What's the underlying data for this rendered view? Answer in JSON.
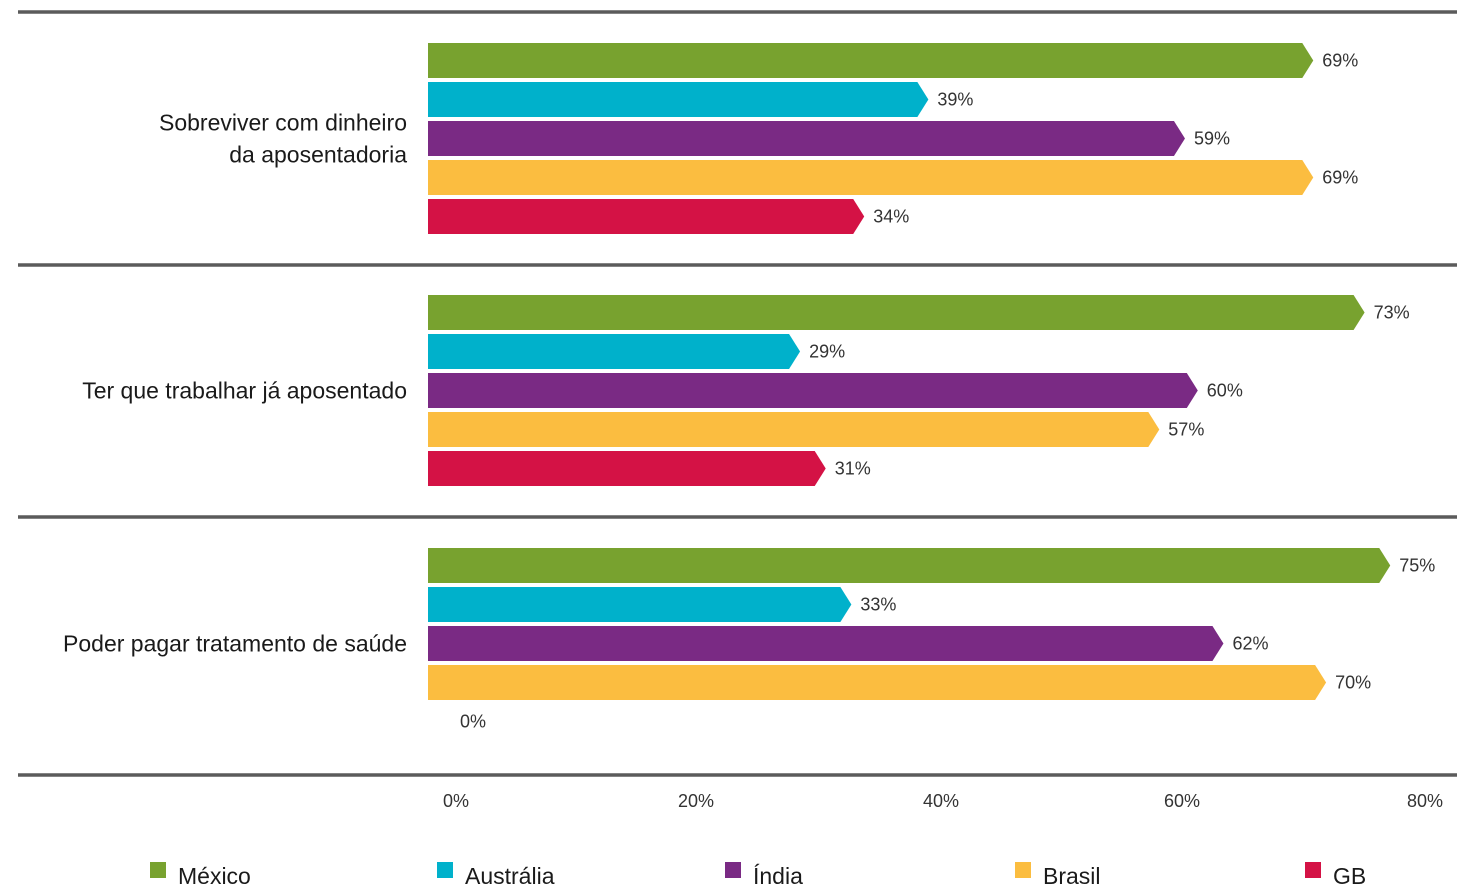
{
  "chart_data": {
    "type": "bar",
    "orientation": "horizontal",
    "categories": [
      [
        "Sobreviver com dinheiro",
        "da aposentadoria"
      ],
      [
        "Ter que trabalhar já aposentado"
      ],
      [
        "Poder pagar tratamento de saúde"
      ]
    ],
    "series": [
      {
        "name": "México",
        "color": "#78a22f",
        "values": [
          69,
          73,
          75
        ]
      },
      {
        "name": "Austrália",
        "color": "#00b1cb",
        "values": [
          39,
          29,
          33
        ]
      },
      {
        "name": "Índia",
        "color": "#7a2a84",
        "values": [
          59,
          60,
          62
        ]
      },
      {
        "name": "Brasil",
        "color": "#fbbd40",
        "values": [
          69,
          57,
          70
        ]
      },
      {
        "name": "GB",
        "color": "#d41245",
        "values": [
          34,
          31,
          0
        ]
      }
    ],
    "value_suffix": "%",
    "xlim": [
      0,
      80
    ],
    "xticks": [
      "0%",
      "20%",
      "40%",
      "60%",
      "80%"
    ],
    "title": "",
    "xlabel": "",
    "ylabel": "",
    "grid": false,
    "legend": {
      "placement": "bottom",
      "entries": [
        "México",
        "Austrália",
        "Índia",
        "Brasil",
        "GB"
      ]
    },
    "separator_color": "#5b5b5b"
  }
}
